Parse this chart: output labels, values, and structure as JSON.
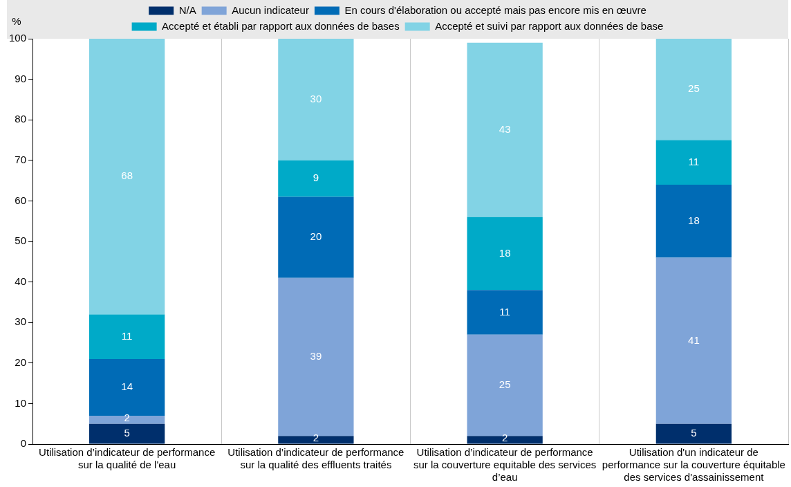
{
  "chart_data": {
    "type": "bar",
    "stacked": true,
    "ylabel": "%",
    "categories": [
      "Utilisation d’indicateur de performance sur la qualité de l'eau",
      "Utilisation d’indicateur de performance sur la qualité des effluents traités",
      "Utilisation d’indicateur de performance sur la couverture equitable des services d’eau",
      "Utilisation d'un indicateur de performance sur la couverture équitable des services d'assainissement"
    ],
    "series": [
      {
        "name": "N/A",
        "color": "#002f6c",
        "values": [
          5,
          2,
          2,
          5
        ]
      },
      {
        "name": "Aucun indicateur",
        "color": "#7fa4d8",
        "values": [
          2,
          39,
          25,
          41
        ]
      },
      {
        "name": "En cours d'élaboration ou accepté mais pas encore mis en œuvre",
        "color": "#006bb6",
        "values": [
          14,
          20,
          11,
          18
        ]
      },
      {
        "name": "Accepté et établi par rapport aux données de bases",
        "color": "#00aac8",
        "values": [
          11,
          9,
          18,
          11
        ]
      },
      {
        "name": "Accepté et suivi par rapport aux données de base",
        "color": "#82d3e5",
        "values": [
          68,
          30,
          43,
          25
        ]
      }
    ],
    "ylim": [
      0,
      100
    ],
    "yticks": [
      0,
      10,
      20,
      30,
      40,
      50,
      60,
      70,
      80,
      90,
      100
    ],
    "grid": "x",
    "legend": "top",
    "data_labels": true
  }
}
